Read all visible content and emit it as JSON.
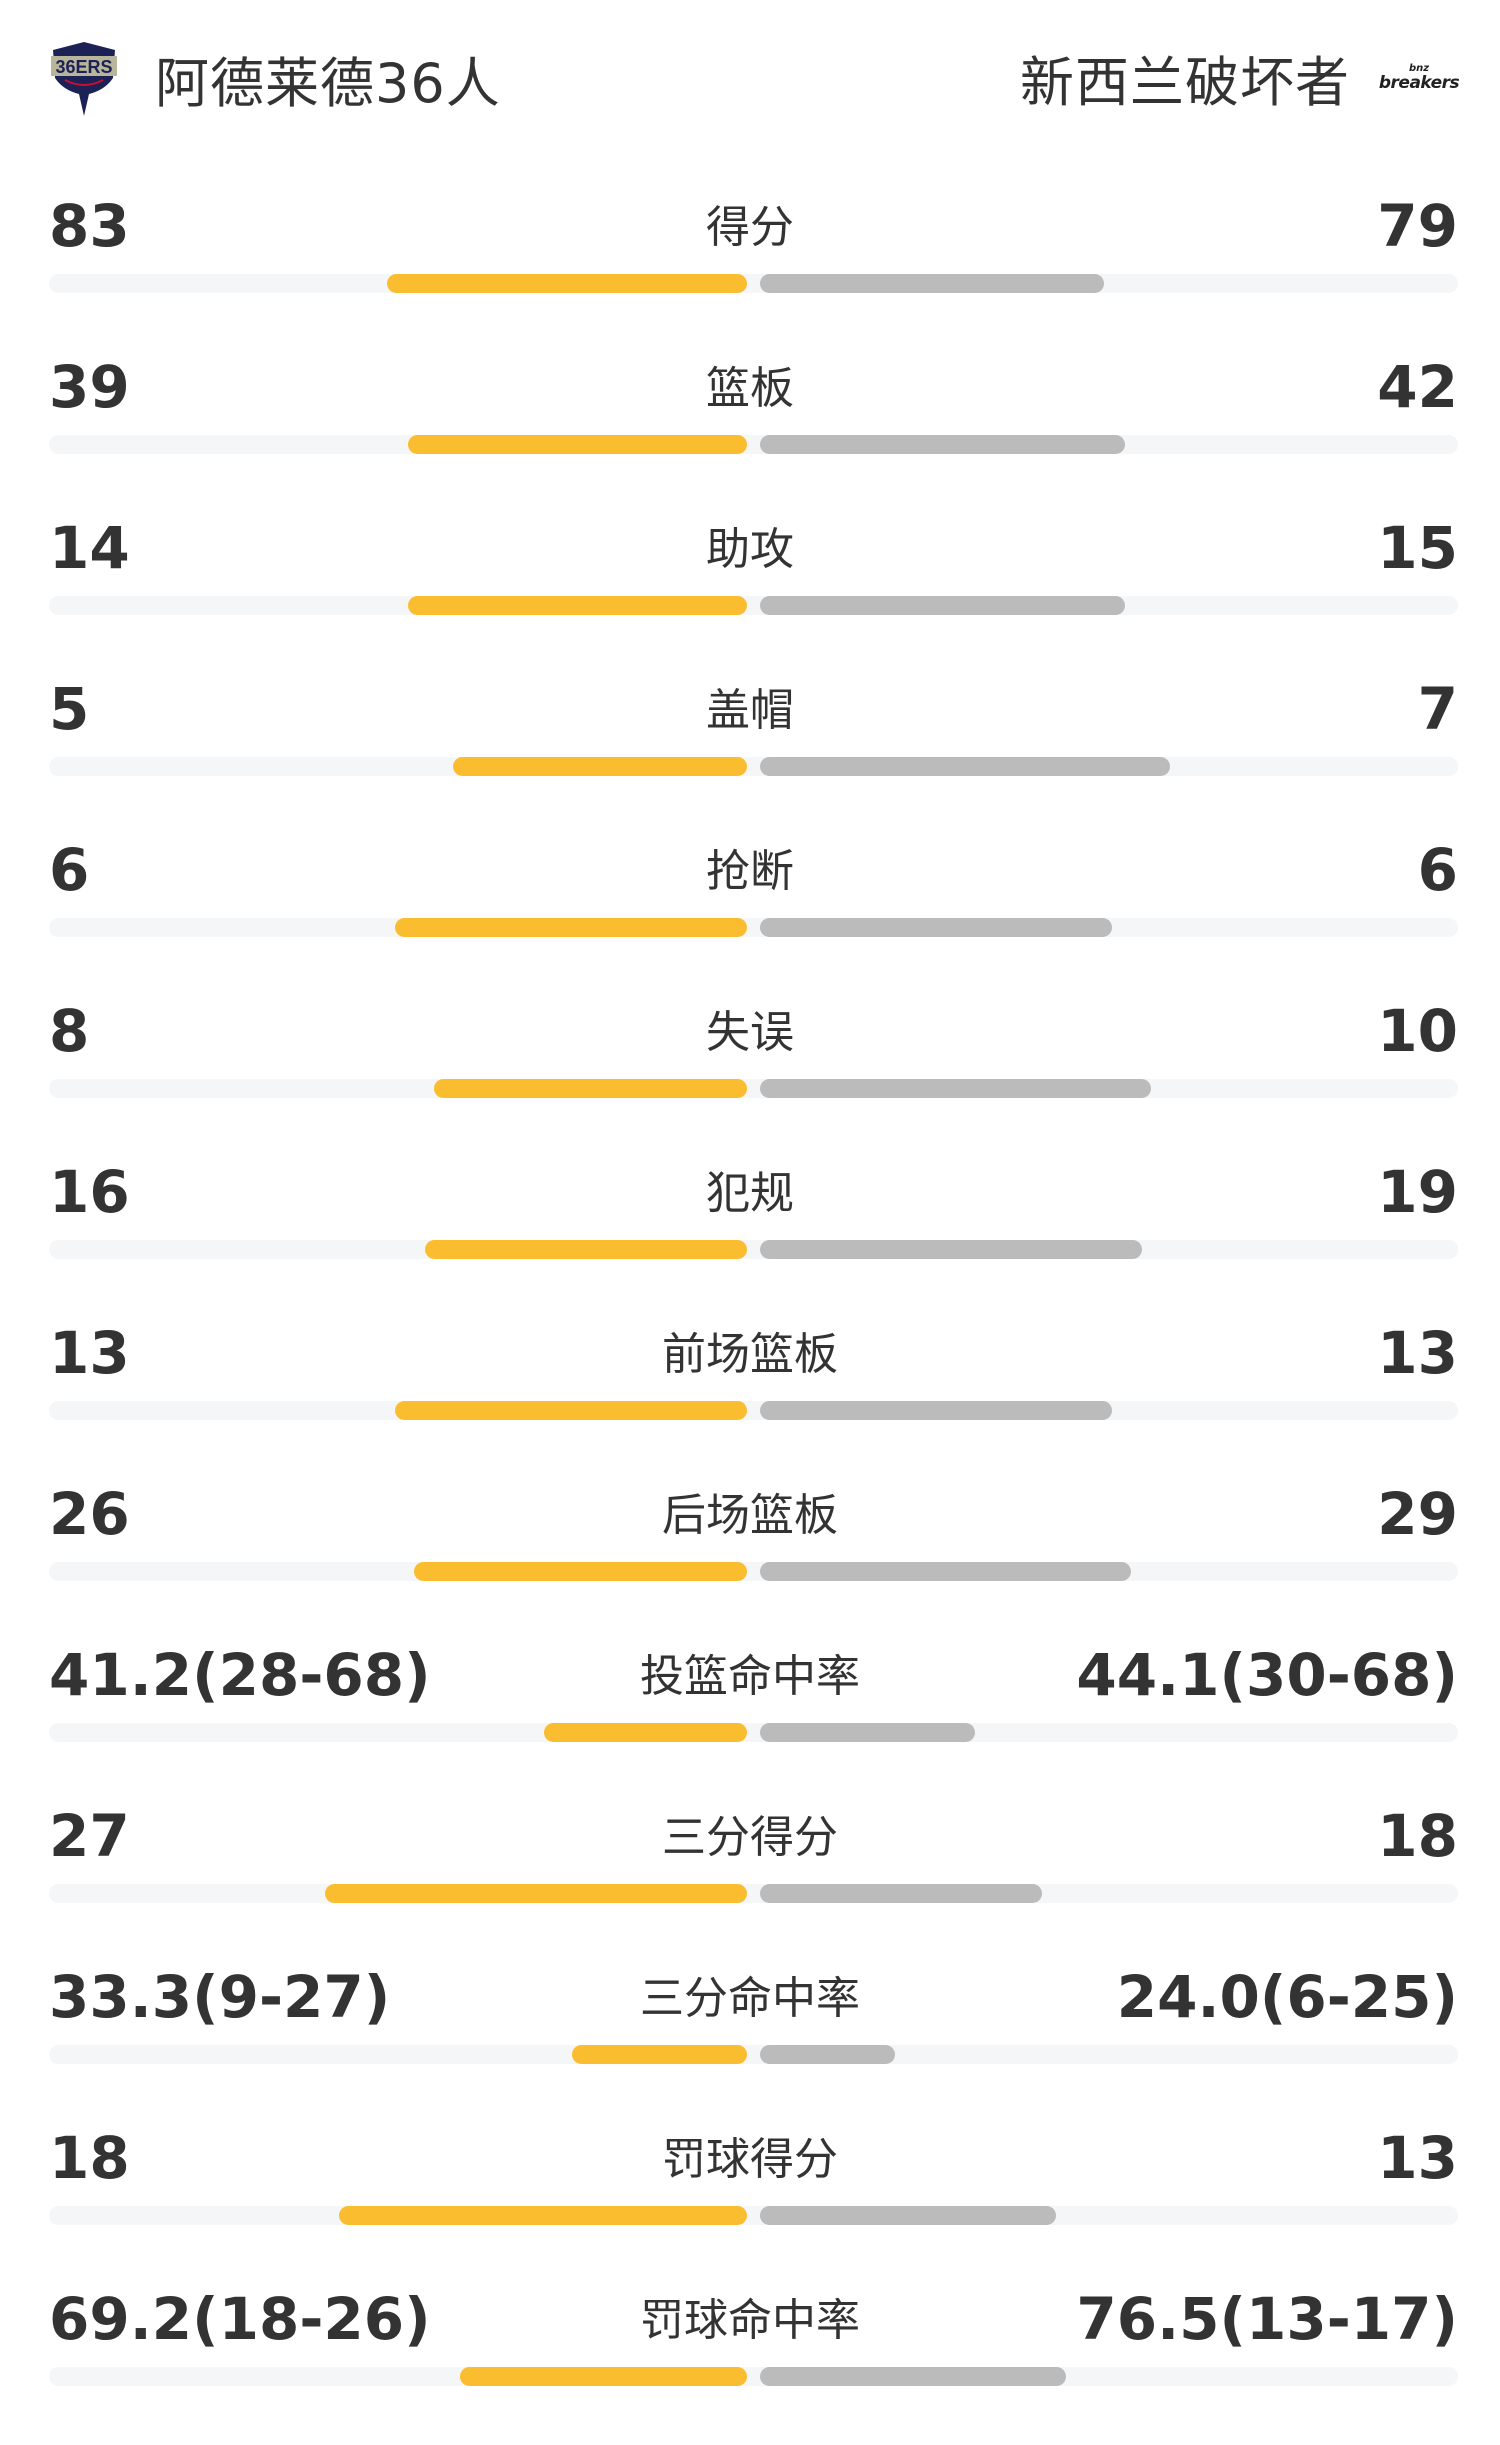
{
  "header": {
    "home_team": "阿德莱德36人",
    "away_team": "新西兰破坏者",
    "home_logo_text": "36ERS",
    "away_logo_text": [
      "bnz",
      "breakers"
    ]
  },
  "colors": {
    "home": "#fbbd30",
    "away": "#bbbbbb",
    "track": "#f5f6f8",
    "text": "#333333"
  },
  "stats": [
    {
      "label": "得分",
      "home": "83",
      "away": "79",
      "home_fill": 0.511,
      "away_fill": 0.489
    },
    {
      "label": "篮板",
      "home": "39",
      "away": "42",
      "home_fill": 0.482,
      "away_fill": 0.518
    },
    {
      "label": "助攻",
      "home": "14",
      "away": "15",
      "home_fill": 0.482,
      "away_fill": 0.518
    },
    {
      "label": "盖帽",
      "home": "5",
      "away": "7",
      "home_fill": 0.417,
      "away_fill": 0.583
    },
    {
      "label": "抢断",
      "home": "6",
      "away": "6",
      "home_fill": 0.5,
      "away_fill": 0.5
    },
    {
      "label": "失误",
      "home": "8",
      "away": "10",
      "home_fill": 0.445,
      "away_fill": 0.555
    },
    {
      "label": "犯规",
      "home": "16",
      "away": "19",
      "home_fill": 0.457,
      "away_fill": 0.543
    },
    {
      "label": "前场篮板",
      "home": "13",
      "away": "13",
      "home_fill": 0.5,
      "away_fill": 0.5
    },
    {
      "label": "后场篮板",
      "home": "26",
      "away": "29",
      "home_fill": 0.473,
      "away_fill": 0.527
    },
    {
      "label": "投篮命中率",
      "home": "41.2(28-68)",
      "away": "44.1(30-68)",
      "home_fill": 0.289,
      "away_fill": 0.306
    },
    {
      "label": "三分得分",
      "home": "27",
      "away": "18",
      "home_fill": 0.6,
      "away_fill": 0.4
    },
    {
      "label": "三分命中率",
      "home": "33.3(9-27)",
      "away": "24.0(6-25)",
      "home_fill": 0.249,
      "away_fill": 0.192
    },
    {
      "label": "罚球得分",
      "home": "18",
      "away": "13",
      "home_fill": 0.58,
      "away_fill": 0.42
    },
    {
      "label": "罚球命中率",
      "home": "69.2(18-26)",
      "away": "76.5(13-17)",
      "home_fill": 0.407,
      "away_fill": 0.434
    }
  ]
}
